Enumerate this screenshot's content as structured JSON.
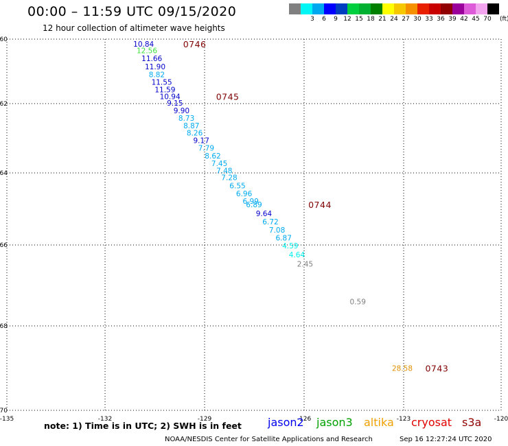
{
  "header": {
    "title": "00:00 – 11:59 UTC 09/15/2020",
    "subtitle": "12 hour collection of altimeter wave heights"
  },
  "legend": {
    "colors": [
      "#808080",
      "#00f5f5",
      "#00a8f0",
      "#0000ff",
      "#0040c0",
      "#00d040",
      "#00b030",
      "#008000",
      "#ffff00",
      "#f5c800",
      "#f59000",
      "#e82000",
      "#c80000",
      "#900000",
      "#9a009a",
      "#dd5ad8",
      "#f2a4ee",
      "#000000"
    ],
    "ticks": [
      "3",
      "6",
      "9",
      "12",
      "15",
      "18",
      "21",
      "24",
      "27",
      "30",
      "33",
      "36",
      "39",
      "42",
      "45",
      "70"
    ],
    "units": "(ft)"
  },
  "axes": {
    "lon_ticks": [
      "-135",
      "-132",
      "-129",
      "-126",
      "-123",
      "-120"
    ],
    "lat_ticks": [
      "-60",
      "-62",
      "-64",
      "-66",
      "-68",
      "-70"
    ]
  },
  "chart_data": {
    "type": "scatter",
    "title": "12 hour collection of altimeter wave heights",
    "xlabel": "",
    "ylabel": "",
    "xlim": [
      -135,
      -120
    ],
    "ylim": [
      -70,
      -60
    ],
    "grid": true,
    "points": [
      {
        "lon": -130.85,
        "lat": -60.15,
        "label": "10.84",
        "color": "#0000cc"
      },
      {
        "lon": -130.75,
        "lat": -60.35,
        "label": "12.56",
        "color": "#40e040"
      },
      {
        "lon": -130.6,
        "lat": -60.6,
        "label": "11.66",
        "color": "#0000cc"
      },
      {
        "lon": -130.5,
        "lat": -60.85,
        "label": "11.90",
        "color": "#0000cc"
      },
      {
        "lon": -130.45,
        "lat": -61.1,
        "label": "8.82",
        "color": "#00aaf0"
      },
      {
        "lon": -130.3,
        "lat": -61.33,
        "label": "11.55",
        "color": "#0000cc"
      },
      {
        "lon": -130.2,
        "lat": -61.56,
        "label": "11.59",
        "color": "#0000cc"
      },
      {
        "lon": -130.05,
        "lat": -61.78,
        "label": "10.94",
        "color": "#0000cc"
      },
      {
        "lon": -129.9,
        "lat": -61.98,
        "label": "9.15",
        "color": "#0000cc"
      },
      {
        "lon": -129.7,
        "lat": -62.2,
        "label": "9.90",
        "color": "#0000cc"
      },
      {
        "lon": -129.55,
        "lat": -62.42,
        "label": "8.73",
        "color": "#00aaf0"
      },
      {
        "lon": -129.4,
        "lat": -62.63,
        "label": "8.87",
        "color": "#00aaf0"
      },
      {
        "lon": -129.3,
        "lat": -62.84,
        "label": "8.26",
        "color": "#00aaf0"
      },
      {
        "lon": -129.1,
        "lat": -63.06,
        "label": "9.17",
        "color": "#0000cc"
      },
      {
        "lon": -128.95,
        "lat": -63.28,
        "label": "7.79",
        "color": "#00aaf0"
      },
      {
        "lon": -128.75,
        "lat": -63.5,
        "label": "8.62",
        "color": "#00aaf0"
      },
      {
        "lon": -128.55,
        "lat": -63.72,
        "label": "7.45",
        "color": "#00aaf0"
      },
      {
        "lon": -128.4,
        "lat": -63.93,
        "label": "7.48",
        "color": "#00aaf0"
      },
      {
        "lon": -128.25,
        "lat": -64.12,
        "label": "7.28",
        "color": "#00aaf0"
      },
      {
        "lon": -128.0,
        "lat": -64.35,
        "label": "6.55",
        "color": "#00aaf0"
      },
      {
        "lon": -127.8,
        "lat": -64.57,
        "label": "6.96",
        "color": "#00aaf0"
      },
      {
        "lon": -127.6,
        "lat": -64.78,
        "label": "6.99",
        "color": "#00aaf0"
      },
      {
        "lon": -127.5,
        "lat": -64.88,
        "label": "6.89",
        "color": "#00aaf0"
      },
      {
        "lon": -127.2,
        "lat": -65.12,
        "label": "9.64",
        "color": "#0000cc"
      },
      {
        "lon": -127.0,
        "lat": -65.35,
        "label": "6.72",
        "color": "#00aaf0"
      },
      {
        "lon": -126.8,
        "lat": -65.58,
        "label": "7.08",
        "color": "#00aaf0"
      },
      {
        "lon": -126.6,
        "lat": -65.8,
        "label": "6.87",
        "color": "#00aaf0"
      },
      {
        "lon": -126.4,
        "lat": -66.02,
        "label": "4.59",
        "color": "#00f0f0"
      },
      {
        "lon": -126.2,
        "lat": -66.24,
        "label": "4.64",
        "color": "#00f0f0"
      },
      {
        "lon": -125.95,
        "lat": -66.47,
        "label": "2.45",
        "color": "#808080"
      },
      {
        "lon": -124.35,
        "lat": -67.4,
        "label": "0.59",
        "color": "#808080"
      },
      {
        "lon": -123.0,
        "lat": -69.0,
        "label": "28.58",
        "color": "#e09000"
      }
    ],
    "time_labels": [
      {
        "lon": -129.3,
        "lat": -60.15,
        "label": "0746"
      },
      {
        "lon": -128.3,
        "lat": -61.78,
        "label": "0745"
      },
      {
        "lon": -125.5,
        "lat": -64.88,
        "label": "0744"
      },
      {
        "lon": -121.95,
        "lat": -69.0,
        "label": "0743"
      }
    ],
    "time_color": "#800000"
  },
  "footer": {
    "note": "note: 1) Time is in UTC; 2) SWH is in feet",
    "satellites": [
      {
        "name": "jason2",
        "color": "#0000ee"
      },
      {
        "name": "jason3",
        "color": "#00a000"
      },
      {
        "name": "altika",
        "color": "#f0a000"
      },
      {
        "name": "cryosat",
        "color": "#e00000"
      },
      {
        "name": "s3a",
        "color": "#900000"
      }
    ],
    "credit": "NOAA/NESDIS Center for Satellite Applications and Research",
    "timestamp": "Sep 16 12:27:24 UTC 2020"
  }
}
